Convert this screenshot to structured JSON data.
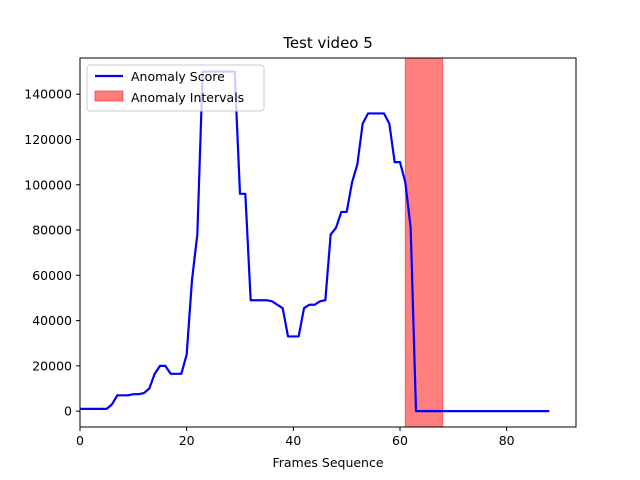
{
  "chart_data": {
    "type": "line",
    "title": "Test video 5",
    "xlabel": "Frames Sequence",
    "ylabel": "",
    "xlim": [
      0,
      93
    ],
    "ylim": [
      -7000,
      156000
    ],
    "x_ticks": [
      0,
      20,
      40,
      60,
      80
    ],
    "y_ticks": [
      0,
      20000,
      40000,
      60000,
      80000,
      100000,
      120000,
      140000
    ],
    "x_tick_labels": [
      "0",
      "20",
      "40",
      "60",
      "80"
    ],
    "y_tick_labels": [
      "0",
      "20000",
      "40000",
      "60000",
      "80000",
      "100000",
      "120000",
      "140000"
    ],
    "grid": false,
    "legend_position": "top-left",
    "series": [
      {
        "name": "Anomaly Score",
        "color": "#0000ff",
        "x": [
          0,
          1,
          2,
          3,
          4,
          5,
          6,
          7,
          8,
          9,
          10,
          11,
          12,
          13,
          14,
          15,
          16,
          17,
          18,
          19,
          20,
          21,
          22,
          23,
          24,
          25,
          26,
          27,
          28,
          29,
          30,
          31,
          32,
          33,
          34,
          35,
          36,
          37,
          38,
          39,
          40,
          41,
          42,
          43,
          44,
          45,
          46,
          47,
          48,
          49,
          50,
          51,
          52,
          53,
          54,
          55,
          56,
          57,
          58,
          59,
          60,
          61,
          62,
          63,
          64,
          65,
          66,
          67,
          68,
          69,
          70,
          71,
          72,
          73,
          74,
          75,
          76,
          77,
          78,
          79,
          80,
          81,
          82,
          83,
          84,
          85,
          86,
          87,
          88
        ],
        "y": [
          1000,
          1000,
          1000,
          1000,
          1000,
          1000,
          3000,
          7000,
          7000,
          7000,
          7500,
          7500,
          8000,
          10000,
          16500,
          20000,
          20000,
          16500,
          16500,
          16500,
          25000,
          58000,
          78000,
          150000,
          150000,
          150000,
          150000,
          150000,
          150000,
          150000,
          96000,
          96000,
          49000,
          49000,
          49000,
          49000,
          48500,
          47000,
          45500,
          33000,
          33000,
          33000,
          45500,
          47000,
          47000,
          48500,
          49000,
          78000,
          81000,
          88000,
          88000,
          101000,
          109000,
          127000,
          131500,
          131500,
          131500,
          131500,
          127000,
          110000,
          110000,
          101000,
          81000,
          0,
          0,
          0,
          0,
          0,
          0,
          0,
          0,
          0,
          0,
          0,
          0,
          0,
          0,
          0,
          0,
          0,
          0,
          0,
          0,
          0,
          0,
          0,
          0,
          0,
          0
        ]
      }
    ],
    "intervals": [
      {
        "name": "Anomaly Intervals",
        "start": 61,
        "end": 68,
        "color": "#ff0000",
        "alpha": 0.5
      }
    ]
  }
}
